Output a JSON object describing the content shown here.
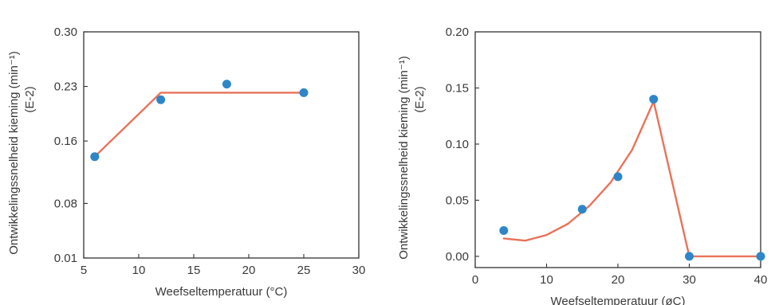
{
  "chart_data": [
    {
      "type": "scatter",
      "xlabel": "Weefseltemperatuur (°C)",
      "ylabel": "Ontwikkelingssnelheid kieming (min⁻¹)",
      "ylabel2": "(E-2)",
      "xlim": [
        5,
        30
      ],
      "ylim": [
        0.01,
        0.3
      ],
      "xticks": [
        5,
        10,
        15,
        20,
        25,
        30
      ],
      "xtick_labels": [
        "5",
        "10",
        "15",
        "20",
        "25",
        "30"
      ],
      "yticks": [
        0.01,
        0.08,
        0.16,
        0.23,
        0.3
      ],
      "ytick_labels": [
        "0.01",
        "0.08",
        "0.16",
        "0.23",
        "0.30"
      ],
      "grid": false,
      "points": [
        {
          "x": 6,
          "y": 0.14
        },
        {
          "x": 12,
          "y": 0.213
        },
        {
          "x": 18,
          "y": 0.233
        },
        {
          "x": 25,
          "y": 0.222
        }
      ],
      "fit_line": [
        {
          "x": 6,
          "y": 0.14
        },
        {
          "x": 12,
          "y": 0.222
        },
        {
          "x": 25,
          "y": 0.222
        }
      ],
      "colors": {
        "points": "#2e86c8",
        "line": "#e8735a",
        "axis": "#333333"
      }
    },
    {
      "type": "scatter",
      "xlabel": "Weefseltemperatuur (øC)",
      "ylabel": "Ontwikkelingssnelheid kieming (min⁻¹)",
      "ylabel2": "(E-2)",
      "xlim": [
        0,
        40
      ],
      "ylim": [
        -0.01,
        0.2
      ],
      "xticks": [
        0,
        10,
        20,
        30,
        40
      ],
      "xtick_labels": [
        "0",
        "10",
        "20",
        "30",
        "40"
      ],
      "yticks": [
        0.0,
        0.05,
        0.1,
        0.15,
        0.2
      ],
      "ytick_labels": [
        "0.00",
        "0.05",
        "0.10",
        "0.15",
        "0.20"
      ],
      "grid": false,
      "points": [
        {
          "x": 4,
          "y": 0.023
        },
        {
          "x": 15,
          "y": 0.042
        },
        {
          "x": 20,
          "y": 0.071
        },
        {
          "x": 25,
          "y": 0.14
        },
        {
          "x": 30,
          "y": 0.0
        },
        {
          "x": 40,
          "y": 0.0
        }
      ],
      "fit_line": [
        {
          "x": 4,
          "y": 0.016
        },
        {
          "x": 7,
          "y": 0.014
        },
        {
          "x": 10,
          "y": 0.019
        },
        {
          "x": 13,
          "y": 0.029
        },
        {
          "x": 16,
          "y": 0.045
        },
        {
          "x": 19,
          "y": 0.066
        },
        {
          "x": 22,
          "y": 0.095
        },
        {
          "x": 25,
          "y": 0.138
        },
        {
          "x": 30,
          "y": 0.0
        },
        {
          "x": 40,
          "y": 0.0
        }
      ],
      "colors": {
        "points": "#2e86c8",
        "line": "#e8735a",
        "axis": "#333333"
      }
    }
  ]
}
